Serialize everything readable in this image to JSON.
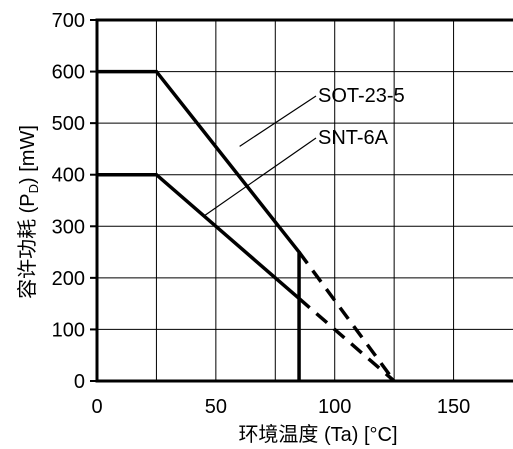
{
  "chart_data": {
    "type": "line",
    "title": "",
    "xlabel": "环境温度 (Ta) [°C]",
    "ylabel": "容许功耗 (P",
    "ylabel_sub": "D",
    "ylabel_tail": ") [mW]",
    "xlim": [
      0,
      175
    ],
    "ylim": [
      0,
      700
    ],
    "x_ticks": [
      0,
      25,
      50,
      75,
      100,
      125,
      150,
      175
    ],
    "y_ticks": [
      0,
      100,
      200,
      300,
      400,
      500,
      600,
      700
    ],
    "x_tick_labels": [
      "0",
      "50",
      "100",
      "150"
    ],
    "x_tick_label_values": [
      0,
      50,
      100,
      150
    ],
    "y_tick_labels": [
      "0",
      "100",
      "200",
      "300",
      "400",
      "500",
      "600",
      "700"
    ],
    "grid": true,
    "series": [
      {
        "name": "SOT-23-5",
        "solid": [
          [
            0,
            600
          ],
          [
            25,
            600
          ],
          [
            85,
            250
          ],
          [
            85,
            0
          ]
        ],
        "dashed": [
          [
            85,
            250
          ],
          [
            125,
            0
          ]
        ]
      },
      {
        "name": "SNT-6A",
        "solid": [
          [
            0,
            400
          ],
          [
            25,
            400
          ],
          [
            85,
            160
          ]
        ],
        "dashed": [
          [
            85,
            160
          ],
          [
            125,
            0
          ]
        ]
      }
    ],
    "annotations": [
      {
        "text": "SOT-23-5",
        "point": [
          60,
          455
        ]
      },
      {
        "text": "SNT-6A",
        "point": [
          45,
          320
        ]
      }
    ]
  }
}
